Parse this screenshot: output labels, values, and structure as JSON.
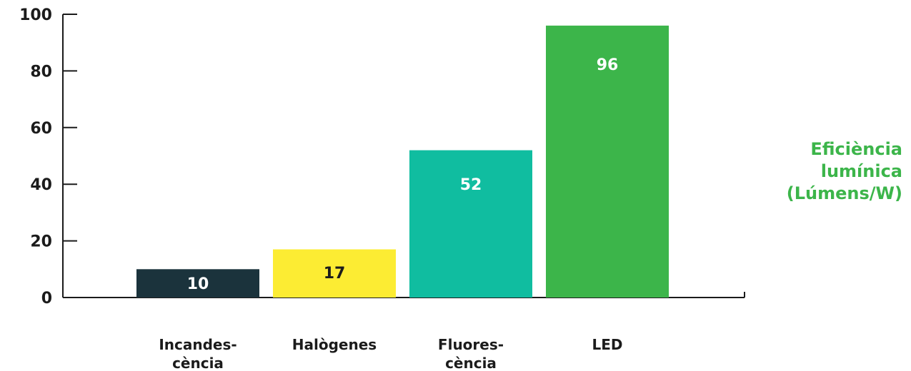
{
  "chart_data": {
    "type": "bar",
    "categories": [
      "Incandes-\ncència",
      "Halògenes",
      "Fluores-\ncència",
      "LED"
    ],
    "values": [
      10,
      17,
      52,
      96
    ],
    "colors": [
      "#1b333c",
      "#fcec33",
      "#10bda0",
      "#3cb54a"
    ],
    "value_label_colors": [
      "#ffffff",
      "#1b1b1b",
      "#ffffff",
      "#ffffff"
    ],
    "title": "",
    "xlabel": "",
    "ylabel": "Eficiència\nlumínica\n(Lúmens/W)",
    "ylabel_color": "#3cb54a",
    "ylim": [
      0,
      100
    ],
    "yticks": [
      0,
      20,
      40,
      60,
      80,
      100
    ],
    "grid": false,
    "legend": "none"
  }
}
